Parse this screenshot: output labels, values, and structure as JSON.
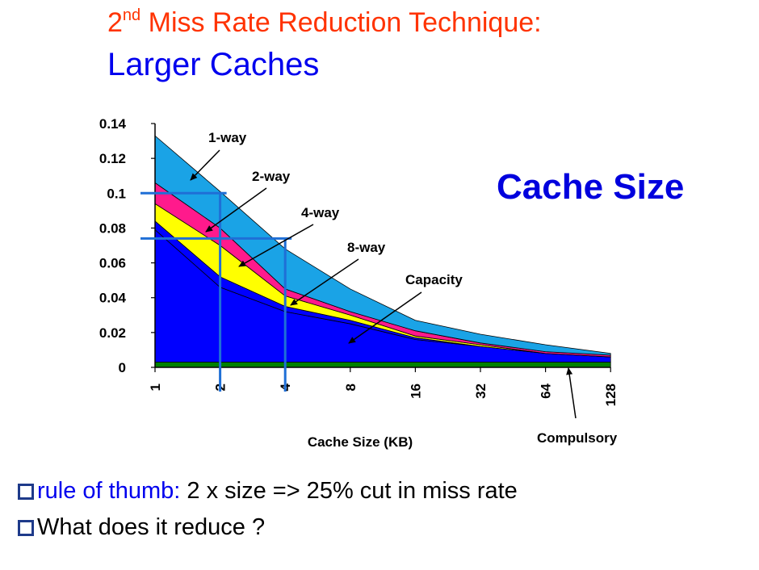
{
  "slide": {
    "title_prefix": "2",
    "title_superscript": "nd",
    "title_rest": " Miss Rate Reduction Technique:",
    "subtitle": "Larger Caches",
    "big_label": "Cache Size"
  },
  "bullets": [
    {
      "highlight": "rule of thumb:",
      "text": " 2 x size => 25% cut in miss rate"
    },
    {
      "highlight": "",
      "text": "What does it reduce ?"
    }
  ],
  "colors": {
    "title": "#ff3300",
    "subtitle": "#0000ee",
    "compulsory": "#008000",
    "capacity": "#0000ff",
    "way8": "#ffff00",
    "way4": "#ff1a8c",
    "way2": "#1aa3e6",
    "guide_lines": "#1f6fd6"
  },
  "chart_data": {
    "type": "area",
    "stacked": true,
    "xlabel": "Cache Size (KB)",
    "ylabel": "",
    "categories": [
      "1",
      "2",
      "4",
      "8",
      "16",
      "32",
      "64",
      "128"
    ],
    "ylim": [
      0,
      0.14
    ],
    "yticks": [
      "0.14",
      "0.12",
      "0.1",
      "0.08",
      "0.06",
      "0.04",
      "0.02",
      "0"
    ],
    "ytick_values": [
      0.14,
      0.12,
      0.1,
      0.08,
      0.06,
      0.04,
      0.02,
      0
    ],
    "series": [
      {
        "name": "Compulsory",
        "values": [
          0.003,
          0.003,
          0.003,
          0.003,
          0.003,
          0.003,
          0.003,
          0.003
        ]
      },
      {
        "name": "Capacity",
        "values": [
          0.076,
          0.043,
          0.029,
          0.022,
          0.013,
          0.009,
          0.005,
          0.003
        ]
      },
      {
        "name": "8-way",
        "values": [
          0.005,
          0.006,
          0.003,
          0.002,
          0.001,
          0.0,
          0.0,
          0.0
        ]
      },
      {
        "name": "4-way",
        "values": [
          0.01,
          0.018,
          0.006,
          0.003,
          0.001,
          0.001,
          0.0,
          0.0
        ]
      },
      {
        "name": "2-way",
        "values": [
          0.012,
          0.01,
          0.004,
          0.002,
          0.003,
          0.001,
          0.001,
          0.001
        ]
      },
      {
        "name": "1-way",
        "values": [
          0.027,
          0.021,
          0.023,
          0.013,
          0.006,
          0.005,
          0.004,
          0.001
        ]
      }
    ],
    "annotations": [
      "1-way",
      "2-way",
      "4-way",
      "8-way",
      "Capacity",
      "Compulsory"
    ],
    "guide_lines": [
      {
        "y": 0.1,
        "x_start": "1",
        "x_end": "2"
      },
      {
        "y": 0.074,
        "x_start": "1",
        "x_end": "4"
      }
    ]
  }
}
